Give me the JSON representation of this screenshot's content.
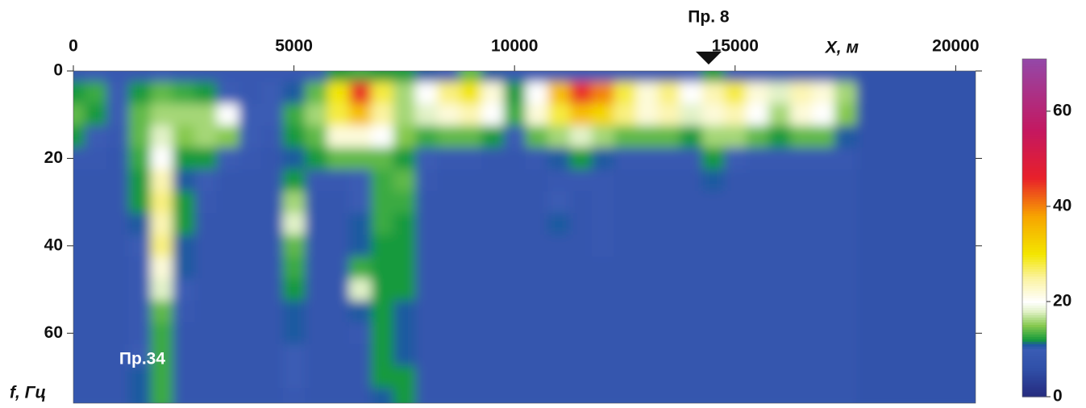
{
  "chart_data": {
    "type": "heatmap",
    "x_label": "X, м",
    "y_label": "f, Гц",
    "xlim": [
      0,
      20450
    ],
    "ylim": [
      0,
      76
    ],
    "y_inverted": true,
    "xticks": [
      0,
      5000,
      10000,
      15000,
      20000
    ],
    "yticks": [
      0,
      20,
      40,
      60
    ],
    "x": [
      0,
      500,
      1000,
      1500,
      2000,
      2500,
      3000,
      3500,
      4000,
      4500,
      5000,
      5500,
      6000,
      6500,
      7000,
      7500,
      8000,
      8500,
      9000,
      9500,
      10000,
      10500,
      11000,
      11500,
      12000,
      12500,
      13000,
      13500,
      14000,
      14500,
      15000,
      15500,
      16000,
      16500,
      17000,
      17500,
      18000,
      18500,
      19000,
      19500,
      20000,
      20500
    ],
    "y": [
      0,
      5,
      10,
      15,
      20,
      25,
      30,
      35,
      40,
      45,
      50,
      55,
      60,
      65,
      70,
      75
    ],
    "z": [
      [
        9,
        10,
        9,
        9,
        10,
        9,
        9,
        9,
        9,
        9,
        9,
        10,
        12,
        13,
        12,
        12,
        11,
        10,
        14,
        11,
        9,
        9,
        10,
        10,
        10,
        10,
        9,
        9,
        10,
        12,
        10,
        9,
        9,
        9,
        9,
        9,
        7,
        7,
        7,
        7,
        7,
        7
      ],
      [
        12,
        13,
        10,
        12,
        14,
        13,
        12,
        10,
        9,
        10,
        11,
        14,
        30,
        45,
        28,
        16,
        20,
        26,
        30,
        22,
        12,
        20,
        35,
        45,
        40,
        28,
        22,
        26,
        20,
        24,
        28,
        22,
        18,
        24,
        22,
        16,
        7,
        7,
        7,
        7,
        7,
        7
      ],
      [
        14,
        12,
        10,
        14,
        16,
        16,
        16,
        20,
        10,
        10,
        13,
        16,
        28,
        35,
        25,
        16,
        18,
        22,
        24,
        20,
        13,
        22,
        28,
        35,
        32,
        26,
        22,
        24,
        18,
        22,
        24,
        20,
        16,
        22,
        20,
        15,
        7,
        7,
        7,
        7,
        7,
        7
      ],
      [
        12,
        10,
        9,
        14,
        18,
        15,
        16,
        15,
        10,
        9,
        12,
        14,
        22,
        22,
        20,
        15,
        13,
        14,
        14,
        12,
        10,
        14,
        16,
        18,
        16,
        14,
        14,
        14,
        12,
        16,
        16,
        14,
        12,
        14,
        14,
        11,
        7,
        7,
        7,
        7,
        7,
        7
      ],
      [
        9,
        9,
        8,
        13,
        20,
        12,
        12,
        10,
        9,
        8,
        11,
        12,
        14,
        14,
        14,
        12,
        10,
        9,
        9,
        8,
        8,
        9,
        11,
        12,
        11,
        9,
        9,
        9,
        9,
        12,
        10,
        9,
        9,
        9,
        9,
        9,
        7,
        7,
        7,
        7,
        7,
        7
      ],
      [
        8,
        8,
        8,
        12,
        24,
        11,
        10,
        8,
        8,
        8,
        12,
        9,
        9,
        10,
        13,
        14,
        9,
        8,
        8,
        8,
        8,
        8,
        9,
        9,
        9,
        8,
        8,
        8,
        8,
        11,
        8,
        8,
        8,
        8,
        8,
        8,
        7,
        7,
        7,
        7,
        7,
        7
      ],
      [
        8,
        8,
        8,
        12,
        26,
        12,
        9,
        8,
        8,
        8,
        16,
        8,
        8,
        10,
        13,
        13,
        8,
        8,
        8,
        8,
        8,
        8,
        10,
        8,
        9,
        8,
        8,
        8,
        8,
        8,
        8,
        8,
        8,
        8,
        8,
        8,
        7,
        7,
        7,
        7,
        7,
        7
      ],
      [
        8,
        8,
        8,
        11,
        24,
        12,
        8,
        8,
        8,
        8,
        18,
        8,
        8,
        11,
        13,
        12,
        8,
        8,
        8,
        8,
        8,
        8,
        11,
        8,
        9,
        8,
        8,
        8,
        8,
        8,
        8,
        8,
        8,
        8,
        8,
        8,
        7,
        7,
        7,
        7,
        7,
        7
      ],
      [
        8,
        8,
        8,
        10,
        26,
        11,
        8,
        8,
        8,
        8,
        14,
        8,
        8,
        11,
        12,
        12,
        8,
        8,
        8,
        8,
        8,
        8,
        8,
        8,
        9,
        8,
        8,
        8,
        8,
        8,
        8,
        8,
        8,
        8,
        8,
        8,
        7,
        7,
        7,
        7,
        7,
        7
      ],
      [
        8,
        8,
        8,
        9,
        22,
        11,
        8,
        8,
        8,
        8,
        13,
        8,
        8,
        13,
        12,
        12,
        8,
        8,
        8,
        8,
        8,
        8,
        8,
        8,
        8,
        8,
        8,
        8,
        8,
        8,
        8,
        8,
        8,
        8,
        8,
        8,
        7,
        7,
        7,
        7,
        7,
        7
      ],
      [
        8,
        8,
        8,
        9,
        18,
        10,
        8,
        8,
        8,
        8,
        12,
        8,
        8,
        18,
        12,
        12,
        8,
        8,
        8,
        8,
        8,
        8,
        8,
        8,
        8,
        8,
        8,
        8,
        8,
        8,
        8,
        8,
        8,
        8,
        8,
        8,
        7,
        7,
        7,
        7,
        7,
        7
      ],
      [
        8,
        8,
        8,
        9,
        14,
        9,
        8,
        8,
        8,
        8,
        11,
        8,
        8,
        11,
        12,
        11,
        8,
        8,
        8,
        8,
        8,
        8,
        8,
        8,
        8,
        8,
        8,
        8,
        8,
        8,
        8,
        8,
        8,
        8,
        8,
        8,
        7,
        7,
        7,
        7,
        7,
        7
      ],
      [
        8,
        8,
        8,
        9,
        13,
        8,
        8,
        8,
        8,
        8,
        11,
        8,
        8,
        9,
        12,
        11,
        8,
        8,
        8,
        8,
        8,
        8,
        8,
        8,
        8,
        8,
        8,
        8,
        8,
        8,
        8,
        8,
        8,
        8,
        8,
        8,
        7,
        7,
        7,
        7,
        7,
        7
      ],
      [
        8,
        8,
        8,
        10,
        13,
        8,
        8,
        8,
        8,
        8,
        10,
        8,
        8,
        8,
        12,
        11,
        8,
        8,
        8,
        8,
        8,
        8,
        8,
        8,
        8,
        8,
        8,
        8,
        8,
        8,
        8,
        8,
        8,
        8,
        8,
        8,
        7,
        7,
        7,
        7,
        7,
        7
      ],
      [
        8,
        8,
        8,
        11,
        13,
        8,
        8,
        8,
        8,
        8,
        10,
        8,
        8,
        8,
        12,
        12,
        8,
        8,
        8,
        8,
        8,
        8,
        8,
        8,
        8,
        8,
        8,
        8,
        8,
        8,
        8,
        8,
        8,
        8,
        8,
        8,
        7,
        7,
        7,
        7,
        7,
        7
      ],
      [
        8,
        8,
        8,
        11,
        13,
        8,
        8,
        8,
        8,
        8,
        9,
        8,
        8,
        8,
        11,
        12,
        8,
        8,
        8,
        8,
        8,
        8,
        8,
        8,
        8,
        8,
        8,
        8,
        8,
        8,
        8,
        8,
        8,
        8,
        8,
        8,
        7,
        7,
        7,
        7,
        7,
        7
      ]
    ],
    "zlim": [
      0,
      71
    ],
    "zticks": [
      0,
      20,
      40,
      60
    ],
    "colorscale": [
      [
        0,
        "#262a7e"
      ],
      [
        6,
        "#3050a8"
      ],
      [
        10,
        "#3a5cb4"
      ],
      [
        11,
        "#1d5aa0"
      ],
      [
        12,
        "#169a3c"
      ],
      [
        15,
        "#86c94e"
      ],
      [
        18,
        "#e2f2c8"
      ],
      [
        20,
        "#ffffff"
      ],
      [
        25,
        "#fbf3a0"
      ],
      [
        30,
        "#f3e600"
      ],
      [
        38,
        "#f7a400"
      ],
      [
        46,
        "#e8202a"
      ],
      [
        56,
        "#c41860"
      ],
      [
        71,
        "#9448a8"
      ]
    ],
    "annotations": [
      {
        "text": "Пр. 8",
        "x": 14400,
        "marker": "triangle"
      },
      {
        "text": "Пр.34",
        "x": 1040,
        "y": 66
      }
    ]
  }
}
